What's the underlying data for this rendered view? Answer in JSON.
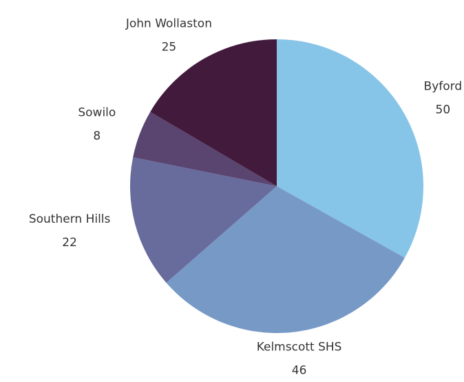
{
  "chart_data": {
    "type": "pie",
    "categories": [
      "Byford",
      "Kelmscott SHS",
      "Southern Hills",
      "Sowilo",
      "John Wollaston"
    ],
    "values": [
      50,
      46,
      22,
      8,
      25
    ],
    "colors": [
      "#86c4e8",
      "#7799c6",
      "#676c9c",
      "#5a4470",
      "#421a3c"
    ]
  }
}
